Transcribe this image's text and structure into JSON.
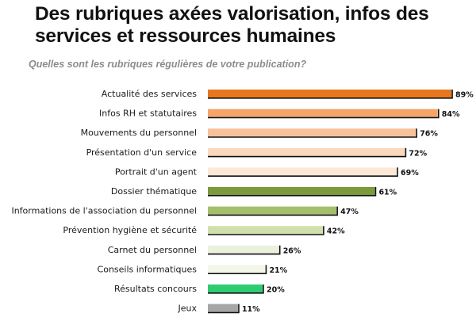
{
  "title": "Des rubriques axées valorisation, infos des services et ressources humaines",
  "subtitle": "Quelles sont les rubriques régulières de votre publication?",
  "chart_data": {
    "type": "bar",
    "orientation": "horizontal",
    "categories": [
      "Actualité des services",
      "Infos RH et statutaires",
      "Mouvements du personnel",
      "Présentation d'un service",
      "Portrait d'un agent",
      "Dossier thématique",
      "Informations de l'association du personnel",
      "Prévention hygiène et sécurité",
      "Carnet du personnel",
      "Conseils informatiques",
      "Résultats concours",
      "Jeux"
    ],
    "values": [
      89,
      84,
      76,
      72,
      69,
      61,
      47,
      42,
      26,
      21,
      20,
      11
    ],
    "value_labels": [
      "89%",
      "84%",
      "76%",
      "72%",
      "69%",
      "61%",
      "47%",
      "42%",
      "26%",
      "21%",
      "20%",
      "11%"
    ],
    "colors": [
      "#e8761e",
      "#f5a46a",
      "#f8c19a",
      "#fbd7bb",
      "#fde8d8",
      "#7a9a3c",
      "#a4bf6a",
      "#cfe0ad",
      "#eaf1dd",
      "#f3f7ea",
      "#2ecc71",
      "#a6a6a6"
    ],
    "xlim": [
      0,
      100
    ],
    "unit": "%",
    "grid": false,
    "legend": "none"
  }
}
